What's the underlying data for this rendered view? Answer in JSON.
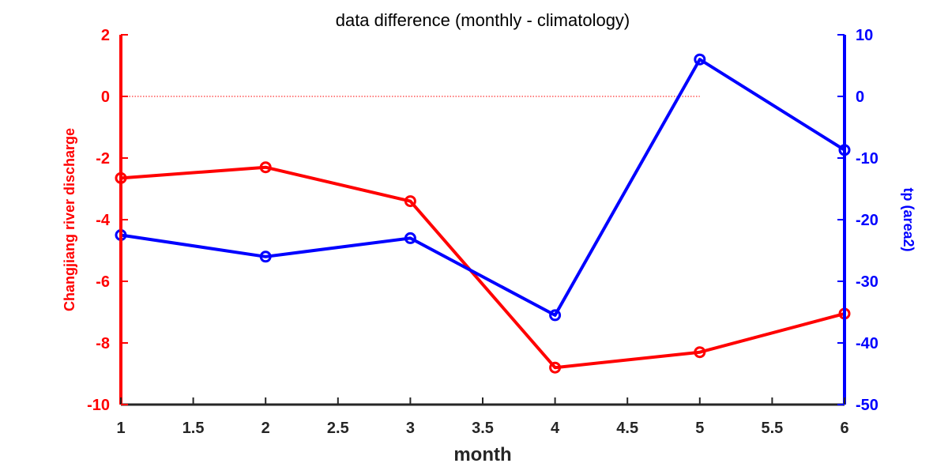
{
  "chart_data": {
    "type": "line",
    "title": "data difference (monthly - climatology)",
    "xlabel": "month",
    "xlim": [
      1,
      6
    ],
    "x_ticks": [
      "1",
      "1.5",
      "2",
      "2.5",
      "3",
      "3.5",
      "4",
      "4.5",
      "5",
      "5.5",
      "6"
    ],
    "grid": false,
    "y_left": {
      "label": "Changjiang river discharge",
      "color": "#ff0000",
      "lim": [
        -10,
        2
      ],
      "ticks": [
        "2",
        "0",
        "-2",
        "-4",
        "-6",
        "-8",
        "-10"
      ]
    },
    "y_right": {
      "label": "tp (area2)",
      "color": "#0000ff",
      "lim": [
        -50,
        10
      ],
      "ticks": [
        "10",
        "0",
        "-10",
        "-20",
        "-30",
        "-40",
        "-50"
      ]
    },
    "series": [
      {
        "axis": "left",
        "color": "#ff0000",
        "marker": "circle",
        "x": [
          1,
          2,
          3,
          4,
          5,
          6
        ],
        "values": [
          -2.65,
          -2.3,
          -3.4,
          -8.8,
          -8.3,
          -7.05
        ]
      },
      {
        "axis": "right",
        "color": "#0000ff",
        "marker": "circle",
        "x": [
          1,
          2,
          3,
          4,
          5,
          6
        ],
        "values": [
          -22.5,
          -26,
          -23,
          -35.5,
          6,
          -8.7
        ]
      }
    ],
    "reference_line": {
      "axis": "left",
      "y": 0,
      "x_range": [
        1,
        5
      ],
      "color": "#ff0000",
      "style": "dotted"
    }
  }
}
